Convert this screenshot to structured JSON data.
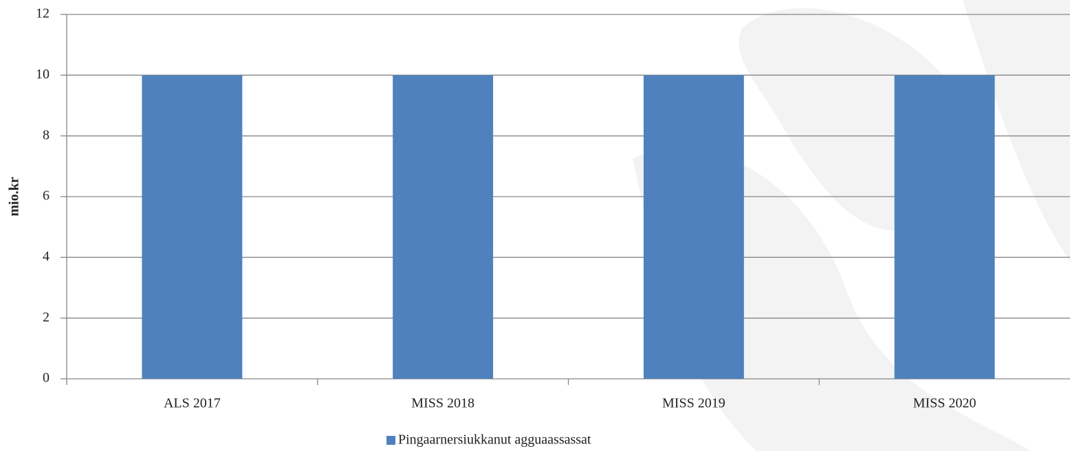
{
  "chart_data": {
    "type": "bar",
    "y_label": "mio.kr",
    "categories": [
      "ALS 2017",
      "MISS 2018",
      "MISS 2019",
      "MISS 2020"
    ],
    "series": [
      {
        "name": "Pingaarnersiukkanut agguaassassat",
        "color": "#4f81bd",
        "values": [
          10,
          10,
          10,
          10
        ]
      }
    ],
    "ylim": [
      0,
      12
    ],
    "yticks": [
      0,
      2,
      4,
      6,
      8,
      10,
      12
    ],
    "grid": true,
    "legend": "bottom"
  }
}
